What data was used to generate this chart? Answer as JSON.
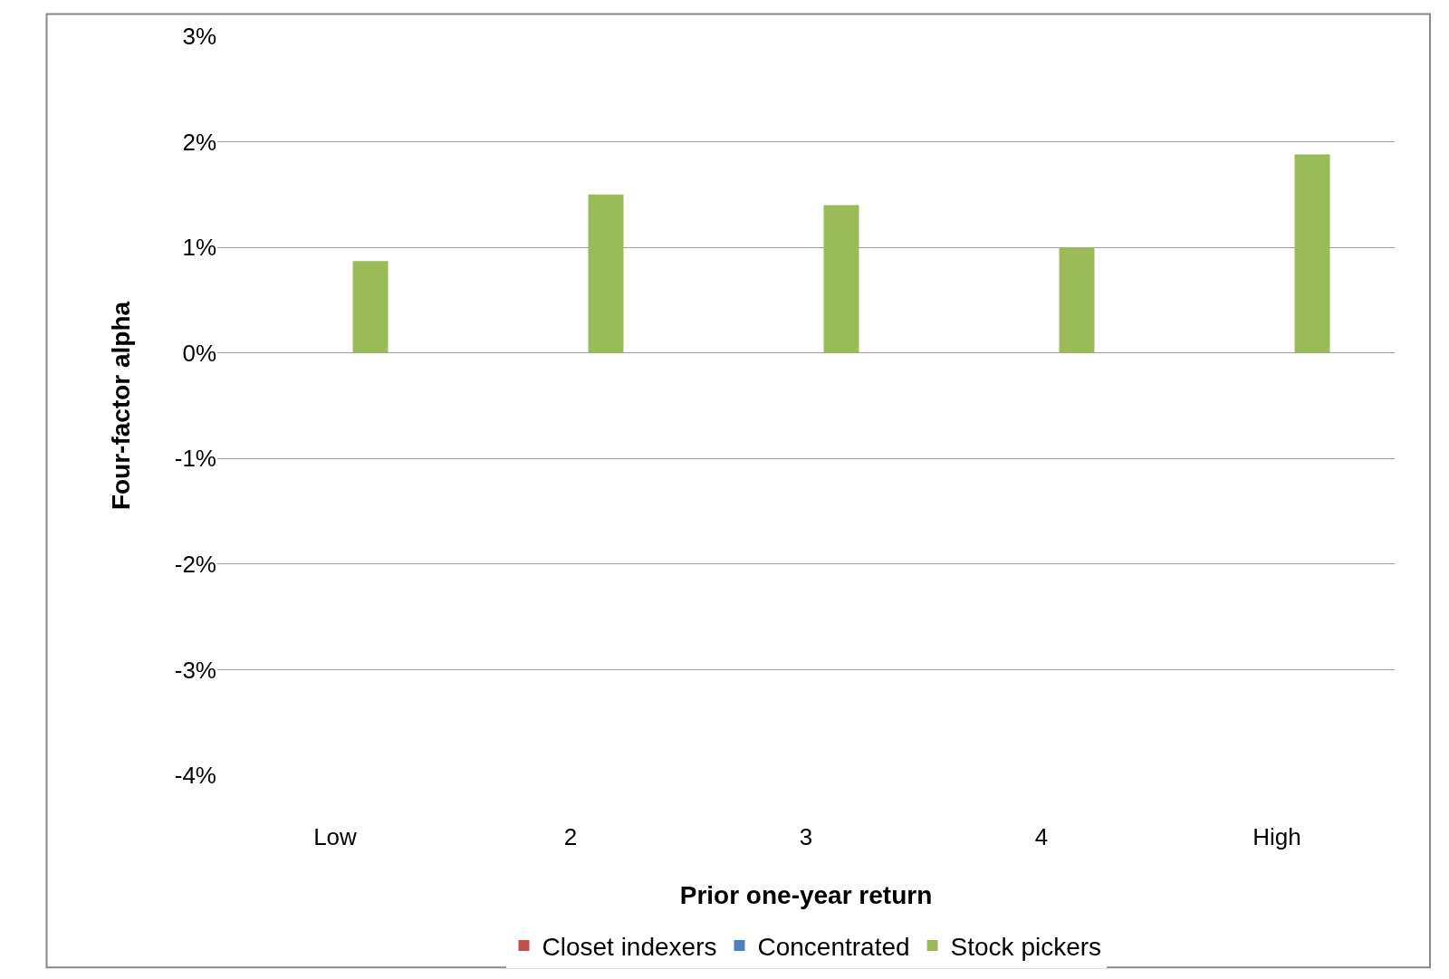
{
  "chart_data": {
    "type": "bar",
    "xlabel": "Prior one-year return",
    "ylabel": "Four-factor alpha",
    "categories": [
      "Low",
      "2",
      "3",
      "4",
      "High"
    ],
    "series": [
      {
        "name": "Closet indexers",
        "color": "#c0504d",
        "values": [
          null,
          null,
          null,
          null,
          null
        ]
      },
      {
        "name": "Concentrated",
        "color": "#4f81bd",
        "values": [
          null,
          null,
          null,
          null,
          null
        ]
      },
      {
        "name": "Stock pickers",
        "color": "#9bbb59",
        "values": [
          0.87,
          1.5,
          1.4,
          1.0,
          1.88
        ]
      }
    ],
    "ylim": [
      -4,
      3
    ],
    "yticks": [
      {
        "value": -4,
        "label": "-4%"
      },
      {
        "value": -3,
        "label": "-3%"
      },
      {
        "value": -2,
        "label": "-2%"
      },
      {
        "value": -1,
        "label": "-1%"
      },
      {
        "value": 0,
        "label": "0%"
      },
      {
        "value": 1,
        "label": "1%"
      },
      {
        "value": 2,
        "label": "2%"
      },
      {
        "value": 3,
        "label": "3%"
      }
    ],
    "grid": "y",
    "legend": "bottom"
  }
}
